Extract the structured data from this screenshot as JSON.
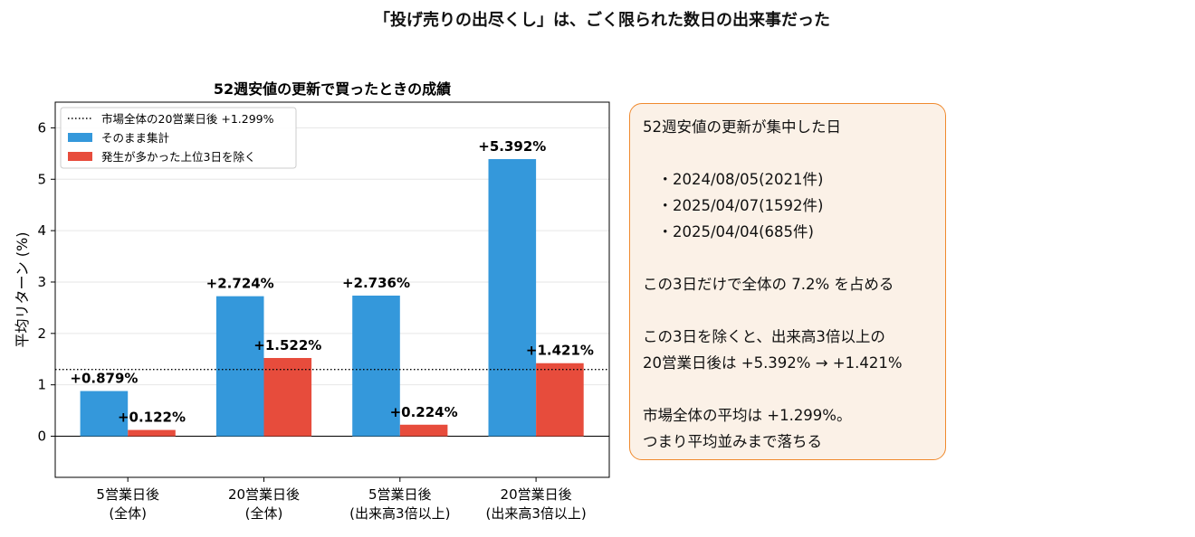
{
  "suptitle": "「投げ売りの出尽くし」は、ごく限られた数日の出来事だった",
  "chart_data": {
    "type": "bar",
    "title": "52週安値の更新で買ったときの成績",
    "ylabel": "平均リターン (%)",
    "xlabel": "",
    "ylim": [
      -0.8,
      6.5
    ],
    "yticks": [
      0,
      1,
      2,
      3,
      4,
      5,
      6
    ],
    "grid": true,
    "legend_position": "top-left",
    "categories": [
      [
        "5営業日後",
        "(全体)"
      ],
      [
        "20営業日後",
        "(全体)"
      ],
      [
        "5営業日後",
        "(出来高3倍以上)"
      ],
      [
        "20営業日後",
        "(出来高3倍以上)"
      ]
    ],
    "series": [
      {
        "name": "そのまま集計",
        "color": "#3498db",
        "values": [
          0.879,
          2.724,
          2.736,
          5.392
        ],
        "labels": [
          "+0.879%",
          "+2.724%",
          "+2.736%",
          "+5.392%"
        ]
      },
      {
        "name": "発生が多かった上位3日を除く",
        "color": "#e74c3c",
        "values": [
          0.122,
          1.522,
          0.224,
          1.421
        ],
        "labels": [
          "+0.122%",
          "+1.522%",
          "+0.224%",
          "+1.421%"
        ]
      }
    ],
    "reference_line": {
      "name": "市場全体の20営業日後 +1.299%",
      "value": 1.299,
      "style": "dotted"
    }
  },
  "note": {
    "lines": [
      "52週安値の更新が集中した日",
      "",
      "　・2024/08/05(2021件)",
      "　・2025/04/07(1592件)",
      "　・2025/04/04(685件)",
      "",
      "この3日だけで全体の 7.2% を占める",
      "",
      "この3日を除くと、出来高3倍以上の",
      "20営業日後は +5.392% → +1.421%",
      "",
      "市場全体の平均は +1.299%。",
      "つまり平均並みまで落ちる"
    ],
    "border_color": "#f08a2e",
    "background_color": "#fbf1e7"
  }
}
